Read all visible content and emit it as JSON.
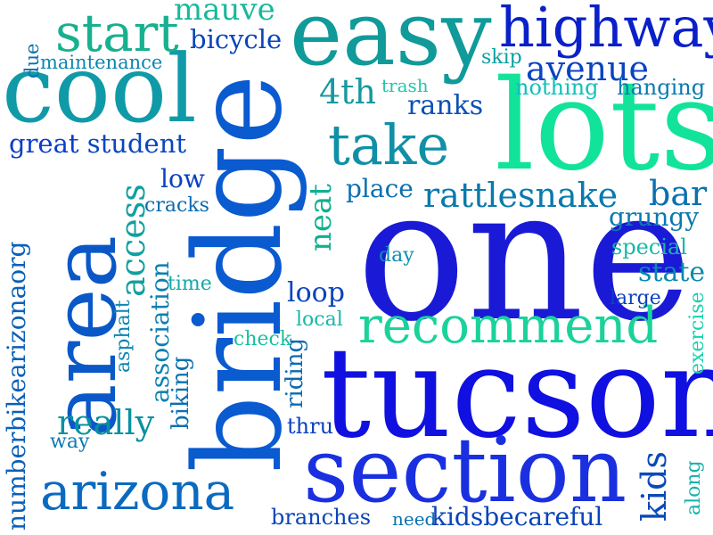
{
  "words": [
    {
      "text": "one",
      "color": "#1a1ad6"
    },
    {
      "text": "tucson",
      "color": "#1010e0"
    },
    {
      "text": "bridge",
      "color": "#0a5ad0"
    },
    {
      "text": "lots",
      "color": "#12e39a"
    },
    {
      "text": "easy",
      "color": "#109a9a"
    },
    {
      "text": "cool",
      "color": "#109aa8"
    },
    {
      "text": "area",
      "color": "#0a58c8"
    },
    {
      "text": "section",
      "color": "#1a30e0"
    },
    {
      "text": "highway",
      "color": "#0a20c8"
    },
    {
      "text": "arizona",
      "color": "#0a6ac0"
    },
    {
      "text": "recommend",
      "color": "#1ad29a"
    },
    {
      "text": "take",
      "color": "#1090a6"
    },
    {
      "text": "start",
      "color": "#18b08e"
    },
    {
      "text": "rattlesnake",
      "color": "#0a7aac"
    },
    {
      "text": "avenue",
      "color": "#0a44c0"
    },
    {
      "text": "mauve",
      "color": "#1ab89a"
    },
    {
      "text": "bicycle",
      "color": "#0a44b8"
    },
    {
      "text": "maintenance",
      "color": "#0a86b0"
    },
    {
      "text": "due",
      "color": "#0a70b0"
    },
    {
      "text": "4th",
      "color": "#1698a0"
    },
    {
      "text": "trash",
      "color": "#20c8a8"
    },
    {
      "text": "skip",
      "color": "#0aa0a0"
    },
    {
      "text": "nothing",
      "color": "#10c0b8"
    },
    {
      "text": "hanging",
      "color": "#0a7ab0"
    },
    {
      "text": "ranks",
      "color": "#0a50b8"
    },
    {
      "text": "great",
      "color": "#0a3ccc"
    },
    {
      "text": "student",
      "color": "#0a46c0"
    },
    {
      "text": "low",
      "color": "#0a40c0"
    },
    {
      "text": "cracks",
      "color": "#0a6ab0"
    },
    {
      "text": "place",
      "color": "#0a70b0"
    },
    {
      "text": "bar",
      "color": "#0a70b0"
    },
    {
      "text": "grungy",
      "color": "#0a7ab0"
    },
    {
      "text": "special",
      "color": "#16b8a8"
    },
    {
      "text": "state",
      "color": "#0a8ab0"
    },
    {
      "text": "large",
      "color": "#0a40c0"
    },
    {
      "text": "exercise",
      "color": "#1ad0b0"
    },
    {
      "text": "access",
      "color": "#10a0a0"
    },
    {
      "text": "association",
      "color": "#0a80b0"
    },
    {
      "text": "time",
      "color": "#16a8a8"
    },
    {
      "text": "day",
      "color": "#0a90b0"
    },
    {
      "text": "neat",
      "color": "#10b090"
    },
    {
      "text": "loop",
      "color": "#0a44b8"
    },
    {
      "text": "local",
      "color": "#16b8a8"
    },
    {
      "text": "check",
      "color": "#18c0a0"
    },
    {
      "text": "numberbikearizonaorg",
      "color": "#0a60b8"
    },
    {
      "text": "asphalt",
      "color": "#0a86b0"
    },
    {
      "text": "biking",
      "color": "#0a70b0"
    },
    {
      "text": "riding",
      "color": "#0a6ab0"
    },
    {
      "text": "thru",
      "color": "#0a40c0"
    },
    {
      "text": "really",
      "color": "#0a90a0"
    },
    {
      "text": "way",
      "color": "#0a7ab0"
    },
    {
      "text": "kids",
      "color": "#0a4ab8"
    },
    {
      "text": "along",
      "color": "#16b0a8"
    },
    {
      "text": "branches",
      "color": "#0a44b8"
    },
    {
      "text": "need",
      "color": "#0a70b0"
    },
    {
      "text": "kidsbecareful",
      "color": "#0a44b8"
    }
  ]
}
